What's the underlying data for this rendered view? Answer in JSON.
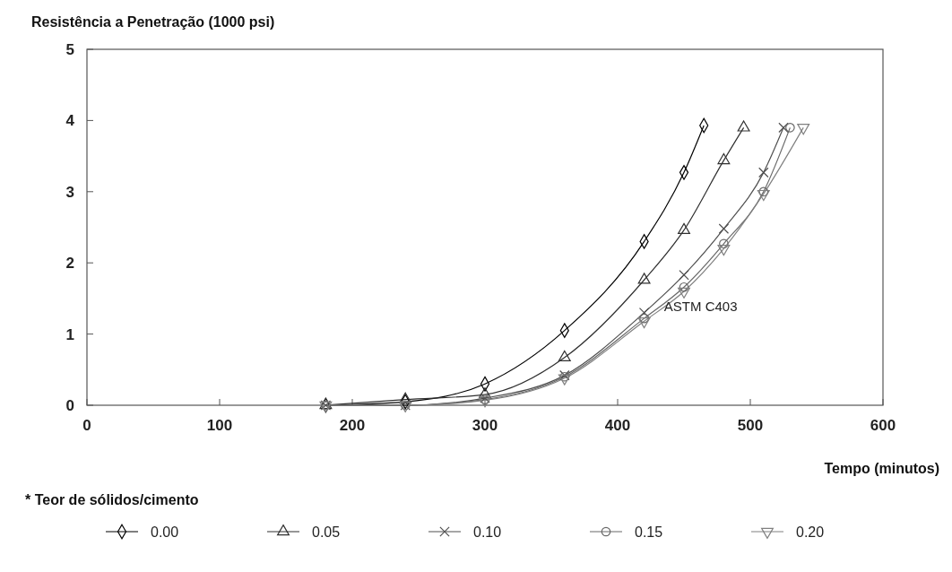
{
  "chart_data": {
    "type": "line",
    "ylabel": "Resistência a Penetração (1000 psi)",
    "xlabel": "Tempo (minutos)",
    "legend_title": "* Teor de sólidos/cimento",
    "legend": "bottom",
    "grid": false,
    "line_style": "solid",
    "xlim": [
      0,
      600
    ],
    "xticks": [
      0,
      100,
      200,
      300,
      400,
      500,
      600
    ],
    "ylim": [
      0,
      5
    ],
    "yticks": [
      0,
      1,
      2,
      3,
      4,
      5
    ],
    "annotations": [
      "ASTM C403"
    ],
    "series": [
      {
        "name": "0.00",
        "color": "#000000",
        "marker": "diamond",
        "x": [
          180,
          240,
          300,
          360,
          420,
          450,
          465
        ],
        "values": [
          0,
          0.05,
          0.3,
          1.05,
          2.3,
          3.27,
          3.93
        ]
      },
      {
        "name": "0.05",
        "color": "#303030",
        "marker": "triangle",
        "x": [
          180,
          240,
          300,
          360,
          420,
          450,
          480,
          495
        ],
        "values": [
          0,
          0.08,
          0.15,
          0.67,
          1.76,
          2.46,
          3.44,
          3.9
        ]
      },
      {
        "name": "0.10",
        "color": "#505050",
        "marker": "cross",
        "x": [
          180,
          240,
          300,
          360,
          420,
          450,
          480,
          510,
          525
        ],
        "values": [
          0,
          0,
          0.1,
          0.42,
          1.3,
          1.83,
          2.48,
          3.27,
          3.9
        ]
      },
      {
        "name": "0.15",
        "color": "#686868",
        "marker": "circle",
        "x": [
          180,
          240,
          300,
          360,
          420,
          450,
          480,
          510,
          530
        ],
        "values": [
          0,
          0,
          0.08,
          0.4,
          1.22,
          1.66,
          2.27,
          3.0,
          3.9
        ]
      },
      {
        "name": "0.20",
        "color": "#808080",
        "marker": "triangle-down",
        "x": [
          180,
          240,
          300,
          360,
          420,
          450,
          480,
          510,
          540
        ],
        "values": [
          0,
          0,
          0.07,
          0.38,
          1.18,
          1.6,
          2.2,
          2.97,
          3.9
        ]
      }
    ]
  }
}
